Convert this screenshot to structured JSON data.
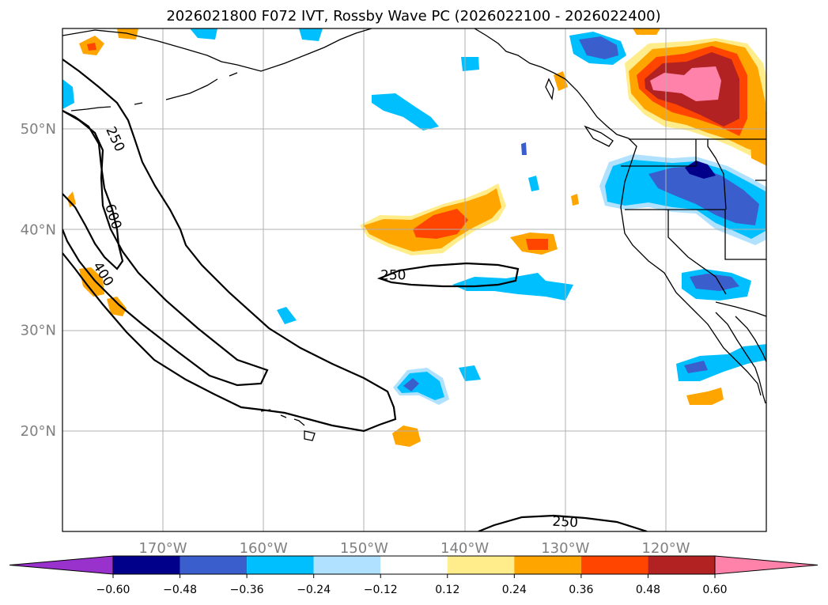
{
  "title": "2026021800 F072 IVT, Rossby Wave PC (2026022100 - 2026022400)",
  "map": {
    "lat_labels": [
      {
        "lat": 50,
        "label": "50°N"
      },
      {
        "lat": 40,
        "label": "40°N"
      },
      {
        "lat": 30,
        "label": "30°N"
      },
      {
        "lat": 20,
        "label": "20°N"
      }
    ],
    "lon_labels": [
      {
        "lon": -170,
        "label": "170°W"
      },
      {
        "lon": -160,
        "label": "160°W"
      },
      {
        "lon": -150,
        "label": "150°W"
      },
      {
        "lon": -140,
        "label": "140°W"
      },
      {
        "lon": -130,
        "label": "130°W"
      },
      {
        "lon": -120,
        "label": "120°W"
      }
    ],
    "contour_labels": [
      {
        "label": "250",
        "lon": -174.7,
        "lat": 49.0
      },
      {
        "label": "600",
        "lon": -174.9,
        "lat": 41.3
      },
      {
        "label": "400",
        "lon": -175.9,
        "lat": 35.6
      },
      {
        "label": "250",
        "lon": -147.1,
        "lat": 35.5
      },
      {
        "label": "250",
        "lon": -130.0,
        "lat": 11.0
      }
    ]
  },
  "colorbar": {
    "levels": [
      "−0.60",
      "−0.48",
      "−0.36",
      "−0.24",
      "−0.12",
      "0.12",
      "0.24",
      "0.36",
      "0.48",
      "0.60"
    ],
    "colors": [
      "#9932cc",
      "#00008b",
      "#3a5fcd",
      "#00bfff",
      "#b0e2ff",
      "#ffffff",
      "#ffec8b",
      "#ffa500",
      "#ff4500",
      "#b22222",
      "#ff82ab"
    ]
  }
}
